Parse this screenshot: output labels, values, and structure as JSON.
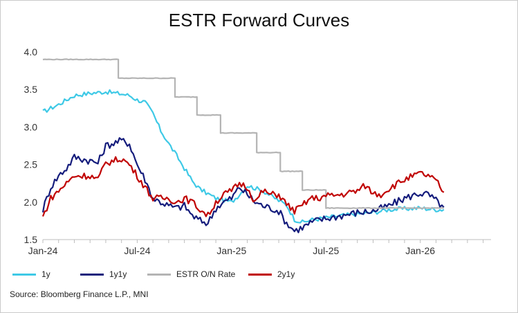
{
  "chart_data": {
    "type": "line",
    "title": "ESTR Forward Curves",
    "xlabel": "",
    "ylabel": "",
    "ylim": [
      1.5,
      4.0
    ],
    "yticks": [
      "1.5",
      "2.0",
      "2.5",
      "3.0",
      "3.5",
      "4.0"
    ],
    "xticks": [
      "Jan-24",
      "Jul-24",
      "Jan-25",
      "Jul-25",
      "Jan-26"
    ],
    "grid": false,
    "legend_position": "bottom",
    "x_unit": "months since Jan-24",
    "series": [
      {
        "name": "1y",
        "color": "#3ec9e6",
        "x": [
          0,
          0.5,
          1,
          2,
          3,
          4,
          5,
          5.5,
          6,
          6.5,
          7,
          7.5,
          8,
          8.5,
          9,
          9.5,
          10,
          11,
          12,
          12.5,
          13,
          14,
          15,
          15.5,
          16,
          16.5,
          17,
          18,
          19,
          20,
          21,
          22,
          23,
          24,
          25,
          25.5
        ],
        "values": [
          3.2,
          3.25,
          3.3,
          3.42,
          3.45,
          3.47,
          3.44,
          3.42,
          3.36,
          3.33,
          3.18,
          2.95,
          2.78,
          2.62,
          2.45,
          2.28,
          2.17,
          2.05,
          2.0,
          2.1,
          2.22,
          2.15,
          2.02,
          1.96,
          1.77,
          1.73,
          1.76,
          1.79,
          1.82,
          1.84,
          1.86,
          1.9,
          1.91,
          1.92,
          1.9,
          1.9
        ]
      },
      {
        "name": "1y1y",
        "color": "#141c7c",
        "x": [
          0,
          0.5,
          1,
          1.5,
          2,
          3,
          3.5,
          4,
          5,
          5.5,
          6,
          6.5,
          7,
          7.5,
          8,
          8.5,
          9,
          9.5,
          10,
          10.5,
          11,
          11.5,
          12,
          12.5,
          13,
          13.5,
          14,
          14.5,
          15,
          15.5,
          16,
          16.5,
          17,
          17.5,
          18,
          19,
          20,
          21,
          22,
          23,
          24,
          24.5,
          25,
          25.5
        ],
        "values": [
          1.9,
          2.2,
          2.35,
          2.45,
          2.6,
          2.55,
          2.52,
          2.75,
          2.82,
          2.78,
          2.5,
          2.3,
          2.05,
          2.0,
          1.95,
          1.92,
          1.95,
          1.82,
          1.75,
          1.72,
          1.92,
          2.0,
          2.05,
          2.2,
          2.1,
          2.0,
          1.95,
          1.92,
          1.88,
          1.72,
          1.62,
          1.66,
          1.72,
          1.76,
          1.78,
          1.82,
          1.86,
          1.88,
          1.95,
          2.05,
          2.12,
          2.1,
          2.02,
          1.93
        ]
      },
      {
        "name": "ESTR O/N Rate",
        "color": "#b4b4b4",
        "x": [
          0,
          4.8,
          4.8,
          8.4,
          8.4,
          9.8,
          9.8,
          11.3,
          11.3,
          13.6,
          13.6,
          15.1,
          15.1,
          16.5,
          16.5,
          18.0,
          18.0,
          25.5
        ],
        "values": [
          3.9,
          3.9,
          3.65,
          3.65,
          3.4,
          3.4,
          3.16,
          3.16,
          2.92,
          2.92,
          2.66,
          2.66,
          2.41,
          2.41,
          2.16,
          2.16,
          1.92,
          1.92
        ]
      },
      {
        "name": "2y1y",
        "color": "#c00000",
        "x": [
          0,
          0.5,
          1,
          1.5,
          2,
          3,
          3.5,
          4,
          5,
          5.5,
          6,
          6.5,
          7,
          7.5,
          8,
          8.5,
          9,
          9.5,
          10,
          10.5,
          11,
          11.5,
          12,
          12.5,
          13,
          13.5,
          14,
          14.5,
          15,
          15.5,
          16,
          16.5,
          17,
          17.5,
          18,
          19,
          20,
          20.5,
          21,
          21.5,
          22,
          23,
          24,
          24.5,
          25,
          25.5
        ],
        "values": [
          1.8,
          2.05,
          2.15,
          2.25,
          2.35,
          2.35,
          2.3,
          2.52,
          2.58,
          2.5,
          2.35,
          2.2,
          2.05,
          2.05,
          2.05,
          2.0,
          2.05,
          2.0,
          1.9,
          1.82,
          2.0,
          2.1,
          2.15,
          2.25,
          2.2,
          2.0,
          2.15,
          2.1,
          2.1,
          1.97,
          1.88,
          1.95,
          2.05,
          2.05,
          2.08,
          2.1,
          2.15,
          2.22,
          2.12,
          2.1,
          2.18,
          2.3,
          2.38,
          2.35,
          2.28,
          2.13
        ]
      }
    ]
  },
  "source": "Source: Bloomberg Finance L.P., MNI"
}
